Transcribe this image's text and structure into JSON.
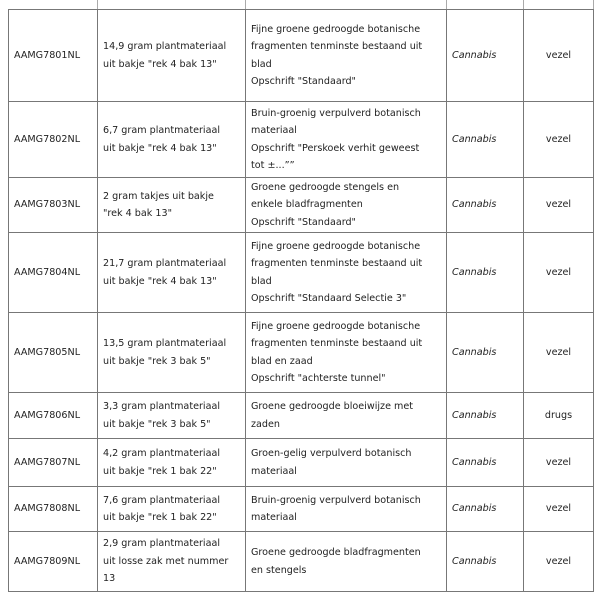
{
  "rows": [
    {
      "id": "AAMG7801NL",
      "sample": [
        "14,9 gram plantmateriaal",
        "uit bakje \"rek 4 bak 13\""
      ],
      "description": [
        "Fijne groene gedroogde botanische",
        "fragmenten tenminste bestaand uit",
        "blad",
        "Opschrift \"Standaard\""
      ],
      "species": "Cannabis",
      "type": "vezel"
    },
    {
      "id": "AAMG7802NL",
      "sample": [
        "6,7 gram plantmateriaal",
        "uit bakje \"rek 4 bak 13\""
      ],
      "description": [
        "Bruin-groenig verpulverd botanisch",
        "materiaal",
        "Opschrift \"Perskoek verhit geweest",
        "tot ±...””"
      ],
      "species": "Cannabis",
      "type": "vezel"
    },
    {
      "id": "AAMG7803NL",
      "sample": [
        "2 gram takjes uit bakje",
        "\"rek 4 bak 13\""
      ],
      "description": [
        "Groene gedroogde stengels en",
        "enkele bladfragmenten",
        "Opschrift \"Standaard\""
      ],
      "species": "Cannabis",
      "type": "vezel"
    },
    {
      "id": "AAMG7804NL",
      "sample": [
        "21,7 gram plantmateriaal",
        "uit bakje \"rek 4 bak 13\""
      ],
      "description": [
        "Fijne groene gedroogde botanische",
        "fragmenten tenminste bestaand uit",
        "blad",
        "Opschrift \"Standaard Selectie 3\""
      ],
      "species": "Cannabis",
      "type": "vezel"
    },
    {
      "id": "AAMG7805NL",
      "sample": [
        "13,5 gram plantmateriaal",
        "uit bakje \"rek 3 bak 5\""
      ],
      "description": [
        "Fijne groene gedroogde botanische",
        "fragmenten tenminste bestaand uit",
        "blad en zaad",
        "Opschrift \"achterste tunnel\""
      ],
      "species": "Cannabis",
      "type": "vezel"
    },
    {
      "id": "AAMG7806NL",
      "sample": [
        "3,3 gram plantmateriaal",
        "uit bakje \"rek 3 bak 5\""
      ],
      "description": [
        "Groene gedroogde bloeiwijze met",
        "zaden"
      ],
      "species": "Cannabis",
      "type": "drugs"
    },
    {
      "id": "AAMG7807NL",
      "sample": [
        "4,2 gram plantmateriaal",
        "uit bakje \"rek 1 bak 22\""
      ],
      "description": [
        "Groen-gelig verpulverd botanisch",
        "materiaal"
      ],
      "species": "Cannabis",
      "type": "vezel"
    },
    {
      "id": "AAMG7808NL",
      "sample": [
        "7,6 gram plantmateriaal",
        "uit bakje \"rek 1 bak 22\""
      ],
      "description": [
        "Bruin-groenig verpulverd botanisch",
        "materiaal"
      ],
      "species": "Cannabis",
      "type": "vezel"
    },
    {
      "id": "AAMG7809NL",
      "sample": [
        "2,9 gram plantmateriaal",
        "uit losse zak met nummer",
        "13"
      ],
      "description": [
        "Groene gedroogde bladfragmenten",
        "en stengels"
      ],
      "species": "Cannabis",
      "type": "vezel"
    }
  ]
}
